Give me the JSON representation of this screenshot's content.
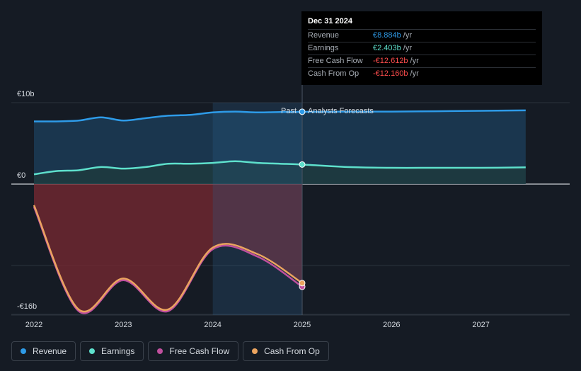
{
  "tooltip": {
    "date": "Dec 31 2024",
    "rows": [
      {
        "label": "Revenue",
        "value": "€8.884b",
        "unit": "/yr",
        "color": "#2e9be8"
      },
      {
        "label": "Earnings",
        "value": "€2.403b",
        "unit": "/yr",
        "color": "#5ee0cc"
      },
      {
        "label": "Free Cash Flow",
        "value": "-€12.612b",
        "unit": "/yr",
        "color": "#ff4d4d"
      },
      {
        "label": "Cash From Op",
        "value": "-€12.160b",
        "unit": "/yr",
        "color": "#ff4d4d"
      }
    ]
  },
  "labels": {
    "past": "Past",
    "forecast": "Analysts Forecasts"
  },
  "legend": [
    {
      "label": "Revenue",
      "color": "#2e9be8"
    },
    {
      "label": "Earnings",
      "color": "#5ee0cc"
    },
    {
      "label": "Free Cash Flow",
      "color": "#c0509e"
    },
    {
      "label": "Cash From Op",
      "color": "#eba45f"
    }
  ],
  "chart_data": {
    "type": "line",
    "y_tick_labels": [
      {
        "value": 10,
        "label": "€10b"
      },
      {
        "value": 0,
        "label": "€0"
      },
      {
        "value": -16,
        "label": "-€16b"
      }
    ],
    "x_tick_labels": [
      "2022",
      "2023",
      "2024",
      "2025",
      "2026",
      "2027"
    ],
    "xlim": [
      2022.0,
      2028.0
    ],
    "ylim": [
      -16,
      10
    ],
    "divider_x": 2025.0,
    "highlight_start_x": 2024.0,
    "series": [
      {
        "name": "Revenue",
        "color": "#2e9be8",
        "x": [
          2022.0,
          2022.25,
          2022.5,
          2022.75,
          2023.0,
          2023.25,
          2023.5,
          2023.75,
          2024.0,
          2024.25,
          2024.5,
          2024.75,
          2025.0,
          2025.5,
          2026.0,
          2026.5,
          2027.0,
          2027.5,
          2028.0
        ],
        "y": [
          7.7,
          7.7,
          7.8,
          8.2,
          7.8,
          8.1,
          8.4,
          8.5,
          8.8,
          8.9,
          8.8,
          8.85,
          8.884,
          8.9,
          8.9,
          8.95,
          9.0,
          9.05,
          9.1
        ],
        "area": true
      },
      {
        "name": "Earnings",
        "color": "#5ee0cc",
        "x": [
          2022.0,
          2022.25,
          2022.5,
          2022.75,
          2023.0,
          2023.25,
          2023.5,
          2023.75,
          2024.0,
          2024.25,
          2024.5,
          2024.75,
          2025.0,
          2025.5,
          2026.0,
          2026.5,
          2027.0,
          2027.5,
          2028.0
        ],
        "y": [
          1.2,
          1.6,
          1.7,
          2.1,
          1.9,
          2.1,
          2.5,
          2.5,
          2.6,
          2.8,
          2.6,
          2.5,
          2.403,
          2.1,
          2.0,
          2.0,
          2.0,
          2.05,
          2.1
        ],
        "area": true
      },
      {
        "name": "Free Cash Flow",
        "color": "#c0509e",
        "x": [
          2022.0,
          2022.5,
          2023.0,
          2023.5,
          2024.0,
          2024.5,
          2025.0
        ],
        "y": [
          -2.8,
          -15.6,
          -11.8,
          -15.6,
          -8.0,
          -8.9,
          -12.612
        ]
      },
      {
        "name": "Cash From Op",
        "color": "#eba45f",
        "x": [
          2022.0,
          2022.5,
          2023.0,
          2023.5,
          2024.0,
          2024.5,
          2025.0
        ],
        "y": [
          -2.6,
          -15.4,
          -11.6,
          -15.4,
          -7.8,
          -8.6,
          -12.16
        ]
      }
    ]
  }
}
